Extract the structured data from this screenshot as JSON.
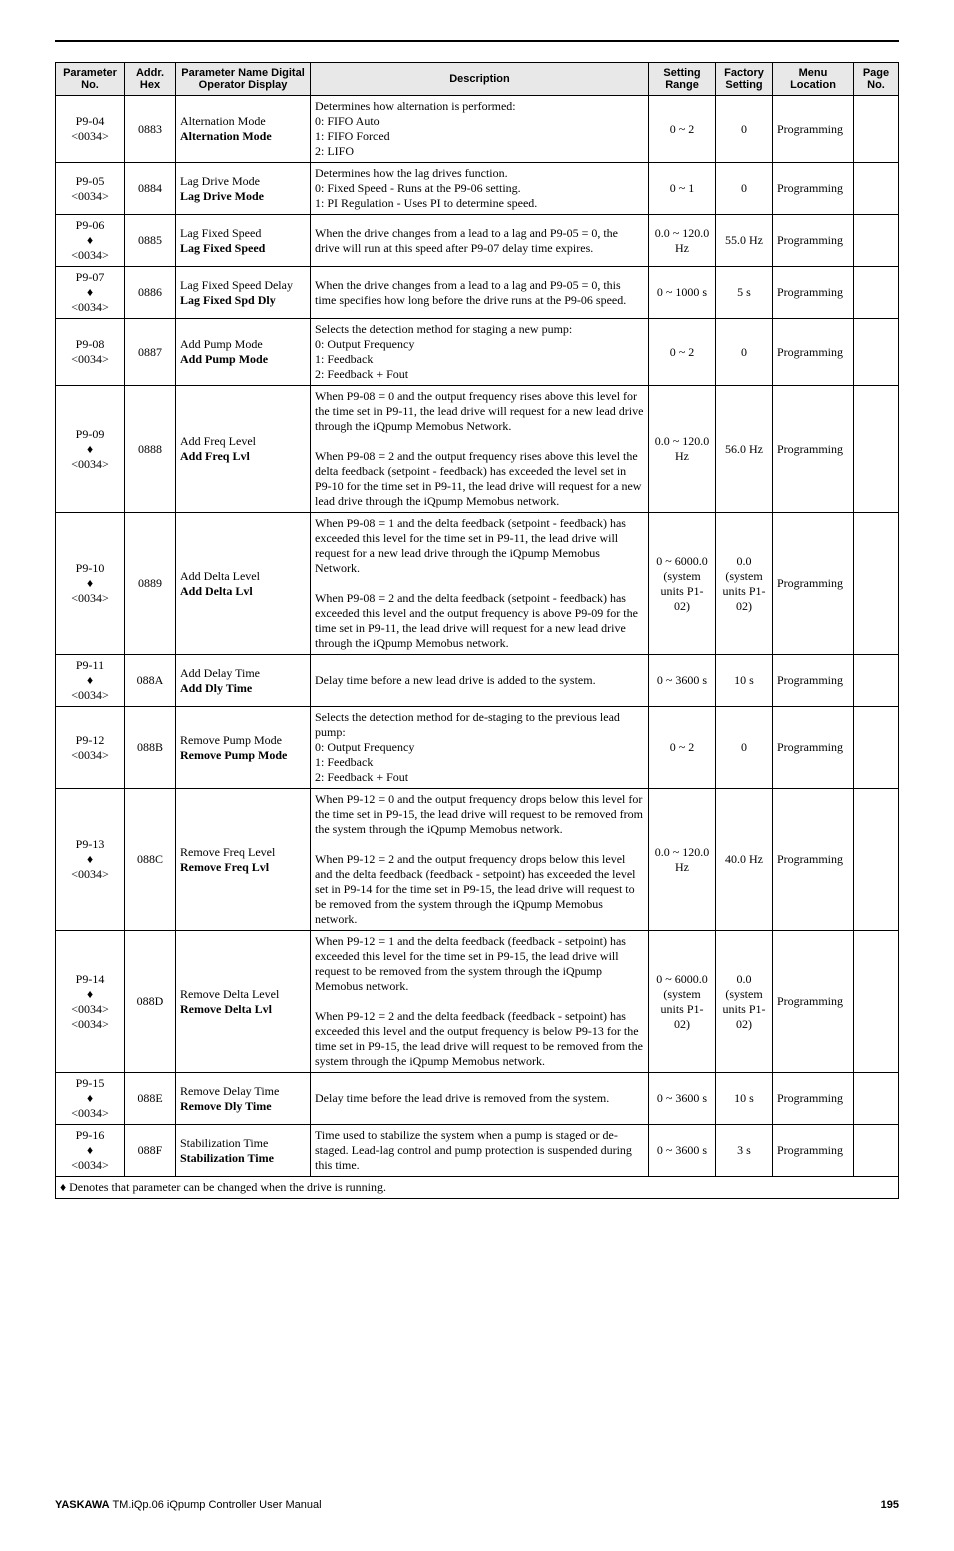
{
  "headers": {
    "paramno": "Parameter No.",
    "addr": "Addr. Hex",
    "name": "Parameter Name Digital Operator Display",
    "desc": "Description",
    "range": "Setting Range",
    "factory": "Factory Setting",
    "menu": "Menu Location",
    "page": "Page No."
  },
  "rows": [
    {
      "paramno": "P9-04\n<0034>",
      "addr": "0883",
      "name_plain": "Alternation Mode",
      "name_bold": "Alternation Mode",
      "desc": "Determines how alternation is performed:\n0: FIFO Auto\n1: FIFO Forced\n2: LIFO",
      "range": "0 ~ 2",
      "factory": "0",
      "menu": "Programming",
      "page": ""
    },
    {
      "paramno": "P9-05\n<0034>",
      "addr": "0884",
      "name_plain": "Lag Drive Mode",
      "name_bold": "Lag Drive Mode",
      "desc": "Determines how the lag drives function.\n0: Fixed Speed - Runs at the P9-06 setting.\n1: PI Regulation - Uses PI to determine speed.",
      "range": "0 ~ 1",
      "factory": "0",
      "menu": "Programming",
      "page": ""
    },
    {
      "paramno": "P9-06\n♦\n<0034>",
      "addr": "0885",
      "name_plain": "Lag Fixed Speed",
      "name_bold": "Lag Fixed Speed",
      "desc": "When the drive changes from a lead to a lag and P9-05 = 0, the drive will run at this speed after P9-07 delay time expires.",
      "range": "0.0 ~ 120.0 Hz",
      "factory": "55.0 Hz",
      "menu": "Programming",
      "page": ""
    },
    {
      "paramno": "P9-07\n♦\n<0034>",
      "addr": "0886",
      "name_plain": "Lag Fixed Speed Delay",
      "name_bold": "Lag Fixed Spd Dly",
      "desc": "When the drive changes from a lead to a lag and P9-05 = 0, this time specifies how long before the drive runs at the P9-06 speed.",
      "range": "0 ~ 1000 s",
      "factory": "5 s",
      "menu": "Programming",
      "page": ""
    },
    {
      "paramno": "P9-08\n<0034>",
      "addr": "0887",
      "name_plain": "Add Pump Mode",
      "name_bold": "Add Pump Mode",
      "desc": "Selects the detection method for staging a new pump:\n0: Output Frequency\n1: Feedback\n2: Feedback + Fout",
      "range": "0 ~ 2",
      "factory": "0",
      "menu": "Programming",
      "page": ""
    },
    {
      "paramno": "P9-09\n♦\n<0034>",
      "addr": "0888",
      "name_plain": "Add Freq Level",
      "name_bold": "Add Freq Lvl",
      "desc": "When P9-08 = 0 and the output frequency rises above this level for the time set in P9-11, the lead drive will request for a new lead drive through the iQpump Memobus Network.\n\nWhen P9-08 = 2 and the output frequency rises above this level the delta feedback (setpoint - feedback) has exceeded the level set in P9-10 for the time set in P9-11, the lead drive will request for a new lead drive through the iQpump Memobus network.",
      "range": "0.0 ~ 120.0 Hz",
      "factory": "56.0 Hz",
      "menu": "Programming",
      "page": ""
    },
    {
      "paramno": "P9-10\n♦\n<0034>",
      "addr": "0889",
      "name_plain": "Add Delta Level",
      "name_bold": "Add Delta Lvl",
      "desc": "When P9-08 = 1 and the delta feedback (setpoint - feedback) has exceeded this level for the time set in P9-11, the lead drive will request for a new lead drive through the iQpump Memobus Network.\n\nWhen P9-08 = 2 and the delta feedback (setpoint - feedback) has exceeded this level and the output frequency is above P9-09 for the time set in P9-11, the lead drive will request for a new lead drive through the iQpump Memobus network.",
      "range": "0 ~ 6000.0 (system units P1-02)",
      "factory": "0.0 (system units P1-02)",
      "menu": "Programming",
      "page": ""
    },
    {
      "paramno": "P9-11\n♦\n<0034>",
      "addr": "088A",
      "name_plain": "Add Delay Time",
      "name_bold": "Add Dly Time",
      "desc": "Delay time before a new lead drive is added to the system.",
      "range": "0 ~ 3600 s",
      "factory": "10 s",
      "menu": "Programming",
      "page": ""
    },
    {
      "paramno": "P9-12\n<0034>",
      "addr": "088B",
      "name_plain": "Remove Pump Mode",
      "name_bold": "Remove Pump Mode",
      "desc": "Selects the detection method for de-staging to the previous lead pump:\n0: Output Frequency\n1: Feedback\n2: Feedback + Fout",
      "range": "0 ~ 2",
      "factory": "0",
      "menu": "Programming",
      "page": ""
    },
    {
      "paramno": "P9-13\n♦\n<0034>",
      "addr": "088C",
      "name_plain": "Remove Freq Level",
      "name_bold": "Remove Freq Lvl",
      "desc": "When P9-12 = 0 and the output frequency drops below this level for the time set in P9-15, the lead drive will request to be removed from the system through the iQpump Memobus network.\n\nWhen P9-12 = 2 and the output frequency drops below this level and the delta feedback (feedback - setpoint) has exceeded the level set in P9-14 for the time set in P9-15, the lead drive will request to be removed from the system through the iQpump Memobus network.",
      "range": "0.0 ~ 120.0 Hz",
      "factory": "40.0 Hz",
      "menu": "Programming",
      "page": ""
    },
    {
      "paramno": "P9-14\n♦\n<0034><0034>",
      "addr": "088D",
      "name_plain": "Remove Delta Level",
      "name_bold": "Remove Delta Lvl",
      "desc": "When P9-12 = 1 and the delta feedback (feedback - setpoint) has exceeded this level for the time set in P9-15, the lead drive will request to be removed from the system through the iQpump Memobus network.\n\nWhen P9-12 = 2 and the delta feedback (feedback - setpoint) has exceeded this level and the output frequency is below P9-13 for the time set in P9-15, the lead drive will request to be removed from the system through the iQpump Memobus network.",
      "range": "0 ~ 6000.0 (system units P1-02)",
      "factory": "0.0 (system units P1-02)",
      "menu": "Programming",
      "page": ""
    },
    {
      "paramno": "P9-15\n♦\n<0034>",
      "addr": "088E",
      "name_plain": "Remove Delay Time",
      "name_bold": "Remove Dly Time",
      "desc": "Delay time before the lead drive is removed from the system.",
      "range": "0 ~ 3600 s",
      "factory": "10 s",
      "menu": "Programming",
      "page": ""
    },
    {
      "paramno": "P9-16\n♦\n<0034>",
      "addr": "088F",
      "name_plain": "Stabilization Time",
      "name_bold": "Stabilization Time",
      "desc": "Time used to stabilize the system when a pump is staged or de-staged. Lead-lag control and pump protection is suspended during this time.",
      "range": "0 ~ 3600 s",
      "factory": "3 s",
      "menu": "Programming",
      "page": ""
    }
  ],
  "footnote": "♦ Denotes that parameter can be changed when the drive is running.",
  "footer": {
    "brand": "YASKAWA",
    "doc": " TM.iQp.06 iQpump Controller User Manual",
    "page": "195"
  }
}
